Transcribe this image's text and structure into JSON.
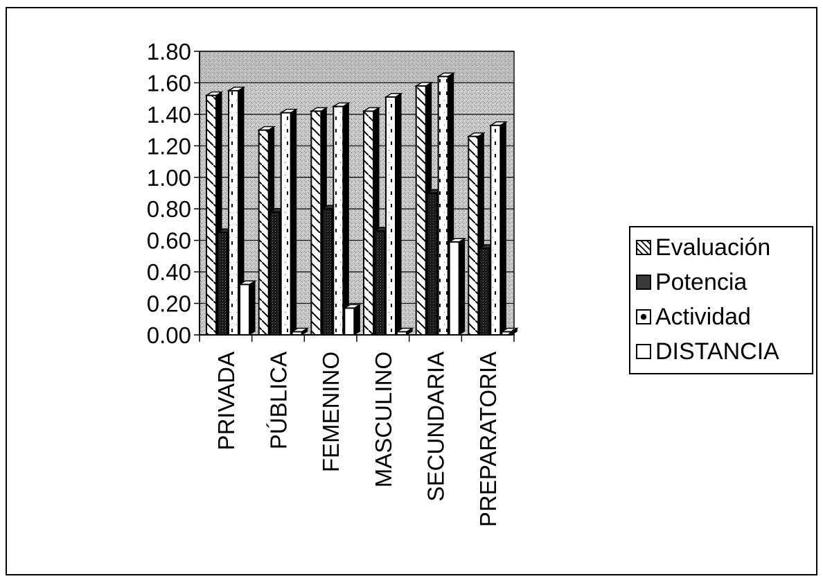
{
  "chart_data": {
    "type": "bar",
    "categories": [
      "PRIVADA",
      "PÚBLICA",
      "FEMENINO",
      "MASCULINO",
      "SECUNDARIA",
      "PREPARATORIA"
    ],
    "series": [
      {
        "name": "Evaluación",
        "values": [
          1.52,
          1.3,
          1.42,
          1.42,
          1.58,
          1.26
        ],
        "pattern": "diagonal-hatch"
      },
      {
        "name": "Potencia",
        "values": [
          0.65,
          0.78,
          0.8,
          0.66,
          0.9,
          0.55
        ],
        "pattern": "dark-stipple"
      },
      {
        "name": "Actividad",
        "values": [
          1.55,
          1.41,
          1.45,
          1.51,
          1.64,
          1.33
        ],
        "pattern": "dotted"
      },
      {
        "name": "DISTANCIA",
        "values": [
          0.32,
          0.02,
          0.17,
          0.02,
          0.59,
          0.02
        ],
        "pattern": "white"
      }
    ],
    "y_ticks": [
      "0.00",
      "0.20",
      "0.40",
      "0.60",
      "0.80",
      "1.00",
      "1.20",
      "1.40",
      "1.60",
      "1.80"
    ],
    "ylim": [
      0,
      1.8
    ],
    "title": "",
    "xlabel": "",
    "ylabel": "",
    "grid": true,
    "legend_position": "right",
    "plot_background": "#b8b8b8"
  }
}
